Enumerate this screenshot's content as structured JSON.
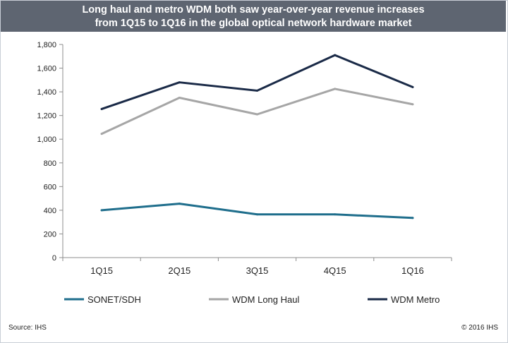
{
  "title": {
    "line1": "Long haul and metro WDM both saw year-over-year revenue increases",
    "line2": "from 1Q15 to 1Q16 in the global optical network hardware market"
  },
  "footer": {
    "source": "Source: IHS",
    "copyright": "© 2016 IHS"
  },
  "colors": {
    "title_band": "#5e6571",
    "sonet": "#1f6e8c",
    "long_haul": "#a6a6a6",
    "metro": "#1a2a47"
  },
  "chart_data": {
    "type": "line",
    "title": "Long haul and metro WDM both saw year-over-year revenue increases from 1Q15 to 1Q16 in the global optical network hardware market",
    "xlabel": "",
    "ylabel": "",
    "categories": [
      "1Q15",
      "2Q15",
      "3Q15",
      "4Q15",
      "1Q16"
    ],
    "ylim": [
      0,
      1800
    ],
    "yticks": [
      0,
      200,
      400,
      600,
      800,
      1000,
      1200,
      1400,
      1600,
      1800
    ],
    "ytick_labels": [
      "0",
      "200",
      "400",
      "600",
      "800",
      "1,000",
      "1,200",
      "1,400",
      "1,600",
      "1,800"
    ],
    "grid": false,
    "legend": "bottom",
    "series": [
      {
        "name": "SONET/SDH",
        "color": "#1f6e8c",
        "values": [
          400,
          455,
          365,
          365,
          335
        ]
      },
      {
        "name": "WDM Long Haul",
        "color": "#a6a6a6",
        "values": [
          1045,
          1350,
          1210,
          1425,
          1295
        ]
      },
      {
        "name": "WDM Metro",
        "color": "#1a2a47",
        "values": [
          1255,
          1480,
          1410,
          1710,
          1440
        ]
      }
    ]
  }
}
